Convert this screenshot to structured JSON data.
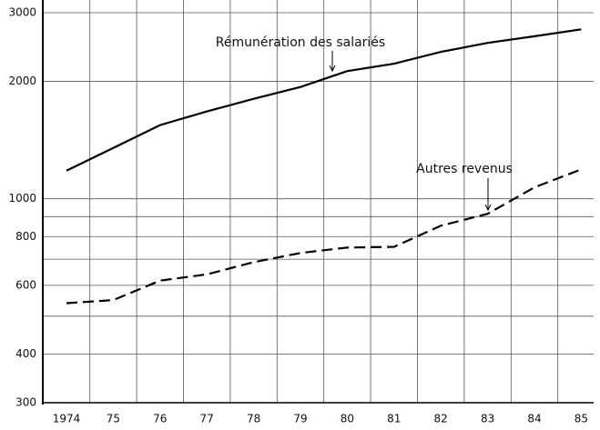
{
  "chart_data": {
    "type": "line",
    "categories": [
      "1974",
      "75",
      "76",
      "77",
      "78",
      "79",
      "80",
      "81",
      "82",
      "83",
      "84",
      "85"
    ],
    "series": [
      {
        "name": "Rémunération des salariés",
        "color": "#000",
        "dash": "solid",
        "values": [
          1180,
          1350,
          1545,
          1675,
          1805,
          1935,
          2125,
          2220,
          2380,
          2510,
          2610,
          2720
        ]
      },
      {
        "name": "Autres revenus",
        "color": "#000",
        "dash": "dashed",
        "values": [
          540,
          550,
          617,
          640,
          688,
          726,
          750,
          753,
          853,
          915,
          1070,
          1190
        ]
      }
    ],
    "ylim": [
      300,
      3000
    ],
    "log_y": true,
    "yticks": [
      300,
      400,
      600,
      800,
      1000,
      2000,
      3000
    ],
    "minor_yticks": [
      500,
      700,
      900
    ],
    "grid": true
  }
}
